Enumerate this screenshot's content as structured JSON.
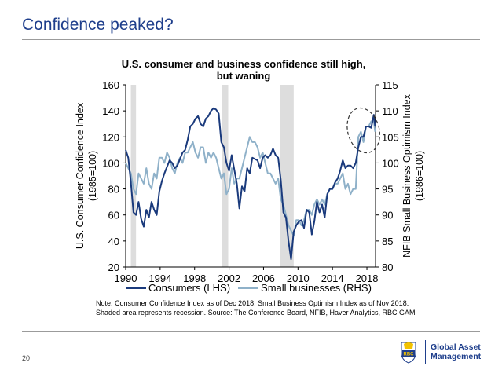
{
  "slide": {
    "title": "Confidence peaked?",
    "page_number": "20",
    "note_line1": "Note: Consumer Confidence Index as of Dec 2018, Small Business Optimism Index as of Nov 2018.",
    "note_line2": "Shaded area represents recession. Source: The Conference Board, NFIB, Haver Analytics, RBC GAM",
    "logo": {
      "line1": "Global Asset",
      "line2": "Management",
      "badge": "RBC"
    }
  },
  "colors": {
    "title": "#1f3f8c",
    "consumers": "#1a3a7c",
    "small_business": "#8fb1c9",
    "recession": "#dddddd"
  },
  "chart_data": {
    "type": "line",
    "title_line1": "U.S. consumer and business confidence still high,",
    "title_line2": "but waning",
    "ylabel_left_line1": "U.S. Consumer Confidence Index",
    "ylabel_left_line2": "(1985=100)",
    "ylabel_right_line1": "NFIB Small Business Optimism Index",
    "ylabel_right_line2": "(1986=100)",
    "xlim": [
      1990,
      2019
    ],
    "ylim_left": [
      20,
      160
    ],
    "ylim_right": [
      80,
      115
    ],
    "x_ticks": [
      1990,
      1994,
      1998,
      2002,
      2006,
      2010,
      2014,
      2018
    ],
    "y_ticks_left": [
      20,
      40,
      60,
      80,
      100,
      120,
      140,
      160
    ],
    "y_ticks_right": [
      80,
      85,
      90,
      95,
      100,
      105,
      110,
      115
    ],
    "recessions": [
      [
        1990.6,
        1991.2
      ],
      [
        2001.2,
        2001.9
      ],
      [
        2007.9,
        2009.5
      ]
    ],
    "annotation": "dashed ellipse around 2017-2018 peak",
    "series": [
      {
        "name": "Consumers (LHS)",
        "axis": "left",
        "x": [
          1990.0,
          1990.3,
          1990.6,
          1990.9,
          1991.2,
          1991.5,
          1991.8,
          1992.1,
          1992.4,
          1992.7,
          1993.0,
          1993.3,
          1993.6,
          1993.9,
          1994.2,
          1994.5,
          1994.8,
          1995.1,
          1995.4,
          1995.7,
          1996.0,
          1996.3,
          1996.6,
          1996.9,
          1997.2,
          1997.5,
          1997.8,
          1998.1,
          1998.4,
          1998.7,
          1999.0,
          1999.3,
          1999.6,
          1999.9,
          2000.2,
          2000.5,
          2000.8,
          2001.1,
          2001.4,
          2001.7,
          2002.0,
          2002.3,
          2002.6,
          2002.9,
          2003.2,
          2003.5,
          2003.8,
          2004.1,
          2004.4,
          2004.7,
          2005.0,
          2005.3,
          2005.6,
          2005.9,
          2006.2,
          2006.5,
          2006.8,
          2007.1,
          2007.4,
          2007.7,
          2008.0,
          2008.3,
          2008.6,
          2008.9,
          2009.2,
          2009.5,
          2009.8,
          2010.1,
          2010.4,
          2010.7,
          2011.0,
          2011.3,
          2011.6,
          2011.9,
          2012.2,
          2012.5,
          2012.8,
          2013.1,
          2013.4,
          2013.7,
          2014.0,
          2014.3,
          2014.6,
          2014.9,
          2015.2,
          2015.5,
          2015.8,
          2016.1,
          2016.4,
          2016.7,
          2017.0,
          2017.3,
          2017.6,
          2017.9,
          2018.2,
          2018.5,
          2018.8,
          2018.95
        ],
        "values": [
          110,
          104,
          85,
          62,
          60,
          70,
          57,
          51,
          64,
          58,
          70,
          64,
          60,
          78,
          86,
          92,
          97,
          102,
          100,
          96,
          98,
          103,
          108,
          110,
          118,
          128,
          130,
          134,
          136,
          130,
          128,
          134,
          136,
          140,
          142,
          141,
          138,
          116,
          112,
          100,
          94,
          106,
          95,
          84,
          65,
          82,
          78,
          96,
          92,
          104,
          103,
          102,
          96,
          104,
          106,
          104,
          106,
          111,
          106,
          104,
          87,
          62,
          58,
          40,
          26,
          47,
          52,
          55,
          56,
          50,
          64,
          62,
          45,
          55,
          70,
          62,
          68,
          58,
          76,
          80,
          80,
          85,
          88,
          94,
          102,
          96,
          98,
          98,
          96,
          100,
          112,
          120,
          120,
          128,
          128,
          127,
          137,
          128
        ]
      },
      {
        "name": "Small businesses (RHS)",
        "axis": "right",
        "x": [
          1990.0,
          1990.3,
          1990.6,
          1990.9,
          1991.2,
          1991.5,
          1991.8,
          1992.1,
          1992.4,
          1992.7,
          1993.0,
          1993.3,
          1993.6,
          1993.9,
          1994.2,
          1994.5,
          1994.8,
          1995.1,
          1995.4,
          1995.7,
          1996.0,
          1996.3,
          1996.6,
          1996.9,
          1997.2,
          1997.5,
          1997.8,
          1998.1,
          1998.4,
          1998.7,
          1999.0,
          1999.3,
          1999.6,
          1999.9,
          2000.2,
          2000.5,
          2000.8,
          2001.1,
          2001.4,
          2001.7,
          2002.0,
          2002.3,
          2002.6,
          2002.9,
          2003.2,
          2003.5,
          2003.8,
          2004.1,
          2004.4,
          2004.7,
          2005.0,
          2005.3,
          2005.6,
          2005.9,
          2006.2,
          2006.5,
          2006.8,
          2007.1,
          2007.4,
          2007.7,
          2008.0,
          2008.3,
          2008.6,
          2008.9,
          2009.2,
          2009.5,
          2009.8,
          2010.1,
          2010.4,
          2010.7,
          2011.0,
          2011.3,
          2011.6,
          2011.9,
          2012.2,
          2012.5,
          2012.8,
          2013.1,
          2013.4,
          2013.7,
          2014.0,
          2014.3,
          2014.6,
          2014.9,
          2015.2,
          2015.5,
          2015.8,
          2016.1,
          2016.4,
          2016.7,
          2017.0,
          2017.3,
          2017.6,
          2017.9,
          2018.2,
          2018.5,
          2018.8,
          2018.95
        ],
        "values": [
          100,
          99,
          98,
          95,
          94,
          98,
          97,
          96,
          99,
          96,
          95,
          98,
          97,
          101,
          101,
          100,
          102,
          101,
          99,
          98,
          100,
          101,
          100,
          102,
          102,
          103,
          104,
          102,
          101,
          103,
          103,
          100,
          102,
          101,
          102,
          101,
          99,
          97,
          98,
          94,
          95,
          99,
          96,
          97,
          97,
          99,
          101,
          103,
          105,
          104,
          104,
          103,
          101,
          102,
          100,
          98,
          98,
          97,
          96,
          97,
          93,
          92,
          90,
          88,
          87,
          86,
          89,
          89,
          88,
          89,
          91,
          91,
          90,
          92,
          93,
          92,
          93,
          92,
          94,
          95,
          95,
          96,
          96,
          97,
          98,
          95,
          96,
          94,
          95,
          95,
          105,
          106,
          104,
          107,
          107,
          108,
          108,
          106
        ]
      }
    ],
    "legend": [
      "Consumers (LHS)",
      "Small businesses (RHS)"
    ]
  }
}
